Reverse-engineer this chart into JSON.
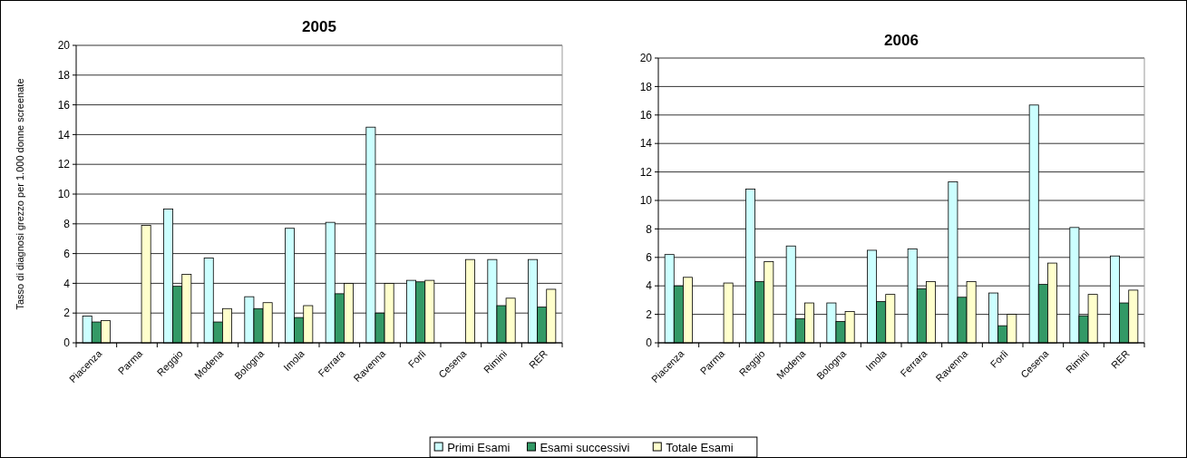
{
  "chart_data": [
    {
      "type": "bar",
      "title": "2005",
      "ylabel": "Tasso di diagnosi grezzo per 1.000 donne screenate",
      "categories": [
        "Piacenza",
        "Parma",
        "Reggio",
        "Modena",
        "Bologna",
        "Imola",
        "Ferrara",
        "Ravenna",
        "Forlì",
        "Cesena",
        "Rimini",
        "RER"
      ],
      "series": [
        {
          "name": "Primi Esami",
          "color": "#ccffff",
          "values": [
            1.8,
            null,
            9.0,
            5.7,
            3.1,
            7.7,
            8.1,
            14.5,
            4.2,
            null,
            5.6,
            5.6
          ]
        },
        {
          "name": "Esami successivi",
          "color": "#339966",
          "values": [
            1.4,
            null,
            3.8,
            1.4,
            2.3,
            1.7,
            3.3,
            2.0,
            4.1,
            null,
            2.5,
            2.4
          ]
        },
        {
          "name": "Totale Esami",
          "color": "#ffffcc",
          "values": [
            1.5,
            7.9,
            4.6,
            2.3,
            2.7,
            2.5,
            4.0,
            4.0,
            4.2,
            5.6,
            3.0,
            3.6
          ]
        }
      ],
      "ylim": [
        0,
        20
      ],
      "yticks": [
        0,
        2,
        4,
        6,
        8,
        10,
        12,
        14,
        16,
        18,
        20
      ],
      "grid": "y",
      "legend": "bottom"
    },
    {
      "type": "bar",
      "title": "2006",
      "categories": [
        "Piacenza",
        "Parma",
        "Reggio",
        "Modena",
        "Bologna",
        "Imola",
        "Ferrara",
        "Ravenna",
        "Forlì",
        "Cesena",
        "Rimini",
        "RER"
      ],
      "series": [
        {
          "color": "#ccffff",
          "values": [
            6.2,
            null,
            10.8,
            6.8,
            2.8,
            6.5,
            6.6,
            11.3,
            3.5,
            16.7,
            8.1,
            6.1
          ]
        },
        {
          "color": "#339966",
          "values": [
            4.0,
            null,
            4.3,
            1.7,
            1.5,
            2.9,
            3.8,
            3.2,
            1.2,
            4.1,
            1.9,
            2.8
          ]
        },
        {
          "color": "#ffffcc",
          "values": [
            4.6,
            4.2,
            5.7,
            2.8,
            2.2,
            3.4,
            4.3,
            4.3,
            2.0,
            5.6,
            3.4,
            3.7
          ]
        }
      ],
      "ylim": [
        0,
        20
      ],
      "yticks": [
        0,
        2,
        4,
        6,
        8,
        10,
        12,
        14,
        16,
        18,
        20
      ],
      "grid": "y"
    }
  ]
}
